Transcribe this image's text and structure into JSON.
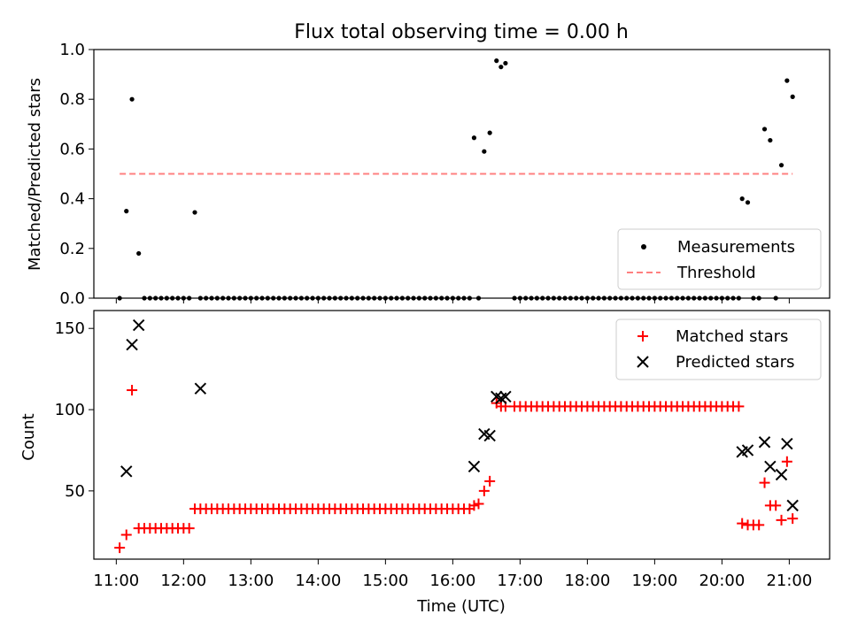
{
  "chart_data": [
    {
      "type": "scatter",
      "title": "Flux total observing time = 0.00 h",
      "xlabel": "",
      "ylabel": "Matched/Predicted stars",
      "ylim": [
        0,
        1.0
      ],
      "yticks": [
        "0.0",
        "0.2",
        "0.4",
        "0.6",
        "0.8",
        "1.0"
      ],
      "legend_position": "lower-right",
      "series": [
        {
          "name": "Measurements",
          "marker": "dot",
          "color": "#000000",
          "x": [
            "11:03",
            "11:09",
            "11:14",
            "11:20",
            "11:25",
            "11:30",
            "11:35",
            "11:40",
            "11:45",
            "11:50",
            "11:55",
            "12:00",
            "12:05",
            "12:10",
            "12:15",
            "12:20",
            "12:25",
            "12:30",
            "12:35",
            "12:40",
            "12:45",
            "12:50",
            "12:55",
            "13:00",
            "13:05",
            "13:10",
            "13:15",
            "13:20",
            "13:25",
            "13:30",
            "13:35",
            "13:40",
            "13:45",
            "13:50",
            "13:55",
            "14:00",
            "14:05",
            "14:10",
            "14:15",
            "14:20",
            "14:25",
            "14:30",
            "14:35",
            "14:40",
            "14:45",
            "14:50",
            "14:55",
            "15:00",
            "15:05",
            "15:10",
            "15:15",
            "15:20",
            "15:25",
            "15:30",
            "15:35",
            "15:40",
            "15:45",
            "15:50",
            "15:55",
            "16:00",
            "16:05",
            "16:10",
            "16:15",
            "16:19",
            "16:23",
            "16:28",
            "16:33",
            "16:39",
            "16:43",
            "16:47",
            "16:55",
            "17:00",
            "17:05",
            "17:10",
            "17:15",
            "17:20",
            "17:25",
            "17:30",
            "17:35",
            "17:40",
            "17:45",
            "17:50",
            "17:55",
            "18:00",
            "18:05",
            "18:10",
            "18:15",
            "18:20",
            "18:25",
            "18:30",
            "18:35",
            "18:40",
            "18:45",
            "18:50",
            "18:55",
            "19:00",
            "19:05",
            "19:10",
            "19:15",
            "19:20",
            "19:25",
            "19:30",
            "19:35",
            "19:40",
            "19:45",
            "19:50",
            "19:55",
            "20:00",
            "20:05",
            "20:10",
            "20:15",
            "20:18",
            "20:23",
            "20:28",
            "20:33",
            "20:38",
            "20:43",
            "20:48",
            "20:53",
            "20:58",
            "21:03"
          ],
          "y": [
            0,
            0.35,
            0.8,
            0.18,
            0,
            0,
            0,
            0,
            0,
            0,
            0,
            0,
            0,
            0.345,
            0,
            0,
            0,
            0,
            0,
            0,
            0,
            0,
            0,
            0,
            0,
            0,
            0,
            0,
            0,
            0,
            0,
            0,
            0,
            0,
            0,
            0,
            0,
            0,
            0,
            0,
            0,
            0,
            0,
            0,
            0,
            0,
            0,
            0,
            0,
            0,
            0,
            0,
            0,
            0,
            0,
            0,
            0,
            0,
            0,
            0,
            0,
            0,
            0,
            0.645,
            0,
            0.59,
            0.665,
            0.955,
            0.93,
            0.945,
            0,
            0,
            0,
            0,
            0,
            0,
            0,
            0,
            0,
            0,
            0,
            0,
            0,
            0,
            0,
            0,
            0,
            0,
            0,
            0,
            0,
            0,
            0,
            0,
            0,
            0,
            0,
            0,
            0,
            0,
            0,
            0,
            0,
            0,
            0,
            0,
            0,
            0,
            0,
            0,
            0,
            0.4,
            0.385,
            0,
            0,
            0.68,
            0.635,
            0,
            0.535,
            0.875,
            0.81
          ]
        },
        {
          "name": "Threshold",
          "marker": "dashed-line",
          "color": "#ff8080",
          "x": [
            "11:03",
            "21:03"
          ],
          "y": [
            0.5,
            0.5
          ]
        }
      ]
    },
    {
      "type": "scatter",
      "title": "",
      "xlabel": "Time (UTC)",
      "ylabel": "Count",
      "yticks": [
        "50",
        "100",
        "150"
      ],
      "xticks": [
        "11:00",
        "12:00",
        "13:00",
        "14:00",
        "15:00",
        "16:00",
        "17:00",
        "18:00",
        "19:00",
        "20:00",
        "21:00"
      ],
      "legend_position": "upper-right",
      "series": [
        {
          "name": "Matched stars",
          "marker": "plus",
          "color": "#ff0000",
          "x": [
            "11:03",
            "11:09",
            "11:14",
            "11:20",
            "11:25",
            "11:30",
            "11:35",
            "11:40",
            "11:45",
            "11:50",
            "11:55",
            "12:00",
            "12:05",
            "12:10",
            "12:15",
            "12:20",
            "12:25",
            "12:30",
            "12:35",
            "12:40",
            "12:45",
            "12:50",
            "12:55",
            "13:00",
            "13:05",
            "13:10",
            "13:15",
            "13:20",
            "13:25",
            "13:30",
            "13:35",
            "13:40",
            "13:45",
            "13:50",
            "13:55",
            "14:00",
            "14:05",
            "14:10",
            "14:15",
            "14:20",
            "14:25",
            "14:30",
            "14:35",
            "14:40",
            "14:45",
            "14:50",
            "14:55",
            "15:00",
            "15:05",
            "15:10",
            "15:15",
            "15:20",
            "15:25",
            "15:30",
            "15:35",
            "15:40",
            "15:45",
            "15:50",
            "15:55",
            "16:00",
            "16:05",
            "16:10",
            "16:15",
            "16:19",
            "16:23",
            "16:28",
            "16:33",
            "16:39",
            "16:43",
            "16:47",
            "16:55",
            "17:00",
            "17:05",
            "17:10",
            "17:15",
            "17:20",
            "17:25",
            "17:30",
            "17:35",
            "17:40",
            "17:45",
            "17:50",
            "17:55",
            "18:00",
            "18:05",
            "18:10",
            "18:15",
            "18:20",
            "18:25",
            "18:30",
            "18:35",
            "18:40",
            "18:45",
            "18:50",
            "18:55",
            "19:00",
            "19:05",
            "19:10",
            "19:15",
            "19:20",
            "19:25",
            "19:30",
            "19:35",
            "19:40",
            "19:45",
            "19:50",
            "19:55",
            "20:00",
            "20:05",
            "20:10",
            "20:15",
            "20:18",
            "20:23",
            "20:28",
            "20:33",
            "20:38",
            "20:43",
            "20:48",
            "20:53",
            "20:58",
            "21:03"
          ],
          "y": [
            15,
            23,
            112,
            27,
            27,
            27,
            27,
            27,
            27,
            27,
            27,
            27,
            27,
            39,
            39,
            39,
            39,
            39,
            39,
            39,
            39,
            39,
            39,
            39,
            39,
            39,
            39,
            39,
            39,
            39,
            39,
            39,
            39,
            39,
            39,
            39,
            39,
            39,
            39,
            39,
            39,
            39,
            39,
            39,
            39,
            39,
            39,
            39,
            39,
            39,
            39,
            39,
            39,
            39,
            39,
            39,
            39,
            39,
            39,
            39,
            39,
            39,
            39,
            41,
            42,
            50,
            56,
            104,
            102,
            102,
            102,
            102,
            102,
            102,
            102,
            102,
            102,
            102,
            102,
            102,
            102,
            102,
            102,
            102,
            102,
            102,
            102,
            102,
            102,
            102,
            102,
            102,
            102,
            102,
            102,
            102,
            102,
            102,
            102,
            102,
            102,
            102,
            102,
            102,
            102,
            102,
            102,
            102,
            102,
            102,
            102,
            30,
            29,
            29,
            29,
            55,
            41,
            41,
            32,
            68,
            33
          ]
        },
        {
          "name": "Predicted stars",
          "marker": "x",
          "color": "#000000",
          "x": [
            "11:09",
            "11:14",
            "11:20",
            "12:15",
            "16:19",
            "16:28",
            "16:33",
            "16:39",
            "16:43",
            "16:47",
            "20:18",
            "20:23",
            "20:38",
            "20:43",
            "20:53",
            "20:58",
            "21:03"
          ],
          "y": [
            62,
            140,
            152,
            113,
            65,
            85,
            84,
            108,
            107,
            108,
            74,
            75,
            80,
            65,
            60,
            79,
            41
          ]
        }
      ]
    }
  ]
}
